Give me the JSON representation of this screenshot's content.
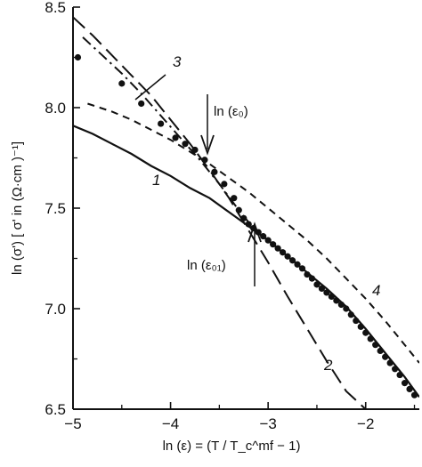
{
  "chart_data": {
    "type": "line",
    "xlabel": "ln (ε) = (T / T_c^mf − 1)",
    "ylabel": "ln (σ') [ σ' in (Ω·cm )⁻¹]",
    "xlim": [
      -5,
      -1.45
    ],
    "ylim": [
      6.5,
      8.5
    ],
    "x_ticks": [
      -5,
      -4,
      -3,
      -2
    ],
    "x_tick_labels": [
      "−5",
      "−4",
      "−3",
      "−2"
    ],
    "y_ticks": [
      6.5,
      7.0,
      7.5,
      8.0,
      8.5
    ],
    "y_tick_labels": [
      "6.5",
      "7.0",
      "7.5",
      "8.0",
      "8.5"
    ],
    "grid": false,
    "series": [
      {
        "name": "1",
        "style": "solid",
        "x": [
          -5.0,
          -4.8,
          -4.6,
          -4.4,
          -4.2,
          -4.0,
          -3.8,
          -3.6,
          -3.4,
          -3.2,
          -3.0,
          -2.8,
          -2.6,
          -2.4,
          -2.2,
          -2.0,
          -1.8,
          -1.6,
          -1.45
        ],
        "y": [
          7.91,
          7.87,
          7.82,
          7.77,
          7.71,
          7.66,
          7.6,
          7.55,
          7.48,
          7.41,
          7.34,
          7.26,
          7.18,
          7.1,
          7.01,
          6.9,
          6.78,
          6.66,
          6.56
        ]
      },
      {
        "name": "2",
        "style": "long-dash",
        "x": [
          -5.0,
          -4.8,
          -4.6,
          -4.4,
          -4.2,
          -4.0,
          -3.8,
          -3.6,
          -3.4,
          -3.2,
          -3.0,
          -2.8,
          -2.6,
          -2.4,
          -2.2,
          -2.0
        ],
        "y": [
          8.45,
          8.36,
          8.26,
          8.16,
          8.06,
          7.94,
          7.82,
          7.69,
          7.55,
          7.39,
          7.23,
          7.06,
          6.9,
          6.74,
          6.59,
          6.5
        ]
      },
      {
        "name": "3",
        "style": "dash-dot",
        "x": [
          -4.9,
          -4.7,
          -4.5,
          -4.3,
          -4.1,
          -3.9,
          -3.7,
          -3.5,
          -3.3,
          -3.2
        ],
        "y": [
          8.35,
          8.26,
          8.17,
          8.07,
          7.96,
          7.85,
          7.74,
          7.62,
          7.49,
          7.43
        ]
      },
      {
        "name": "4",
        "style": "short-dash",
        "x": [
          -4.85,
          -4.6,
          -4.4,
          -4.2,
          -4.0,
          -3.8,
          -3.6,
          -3.4,
          -3.2,
          -3.0,
          -2.8,
          -2.6,
          -2.4,
          -2.2,
          -2.0,
          -1.8,
          -1.6,
          -1.45
        ],
        "y": [
          8.02,
          7.98,
          7.94,
          7.89,
          7.84,
          7.78,
          7.72,
          7.65,
          7.58,
          7.5,
          7.42,
          7.34,
          7.25,
          7.15,
          7.05,
          6.94,
          6.82,
          6.73
        ]
      },
      {
        "name": "data",
        "style": "markers",
        "x": [
          -4.95,
          -4.5,
          -4.3,
          -4.1,
          -3.95,
          -3.85,
          -3.75,
          -3.65,
          -3.55,
          -3.45,
          -3.35,
          -3.3,
          -3.25,
          -3.2,
          -3.15,
          -3.1,
          -3.05,
          -3.0,
          -2.95,
          -2.9,
          -2.85,
          -2.8,
          -2.75,
          -2.7,
          -2.65,
          -2.6,
          -2.55,
          -2.5,
          -2.45,
          -2.4,
          -2.35,
          -2.3,
          -2.25,
          -2.2,
          -2.15,
          -2.1,
          -2.05,
          -2.0,
          -1.95,
          -1.9,
          -1.85,
          -1.8,
          -1.75,
          -1.7,
          -1.65,
          -1.6,
          -1.55,
          -1.5
        ],
        "y": [
          8.25,
          8.12,
          8.02,
          7.92,
          7.85,
          7.82,
          7.79,
          7.74,
          7.68,
          7.62,
          7.55,
          7.49,
          7.45,
          7.42,
          7.4,
          7.38,
          7.36,
          7.34,
          7.32,
          7.3,
          7.28,
          7.26,
          7.24,
          7.22,
          7.2,
          7.17,
          7.15,
          7.12,
          7.1,
          7.08,
          7.06,
          7.04,
          7.02,
          7.0,
          6.97,
          6.94,
          6.91,
          6.88,
          6.85,
          6.82,
          6.79,
          6.76,
          6.73,
          6.7,
          6.67,
          6.63,
          6.6,
          6.57
        ]
      }
    ],
    "annotations": [
      {
        "text": "ln (ε₀)",
        "x": -3.7,
        "y": 7.79
      },
      {
        "text": "ln (ε₀₁)",
        "x": -3.2,
        "y": 7.41
      }
    ]
  }
}
